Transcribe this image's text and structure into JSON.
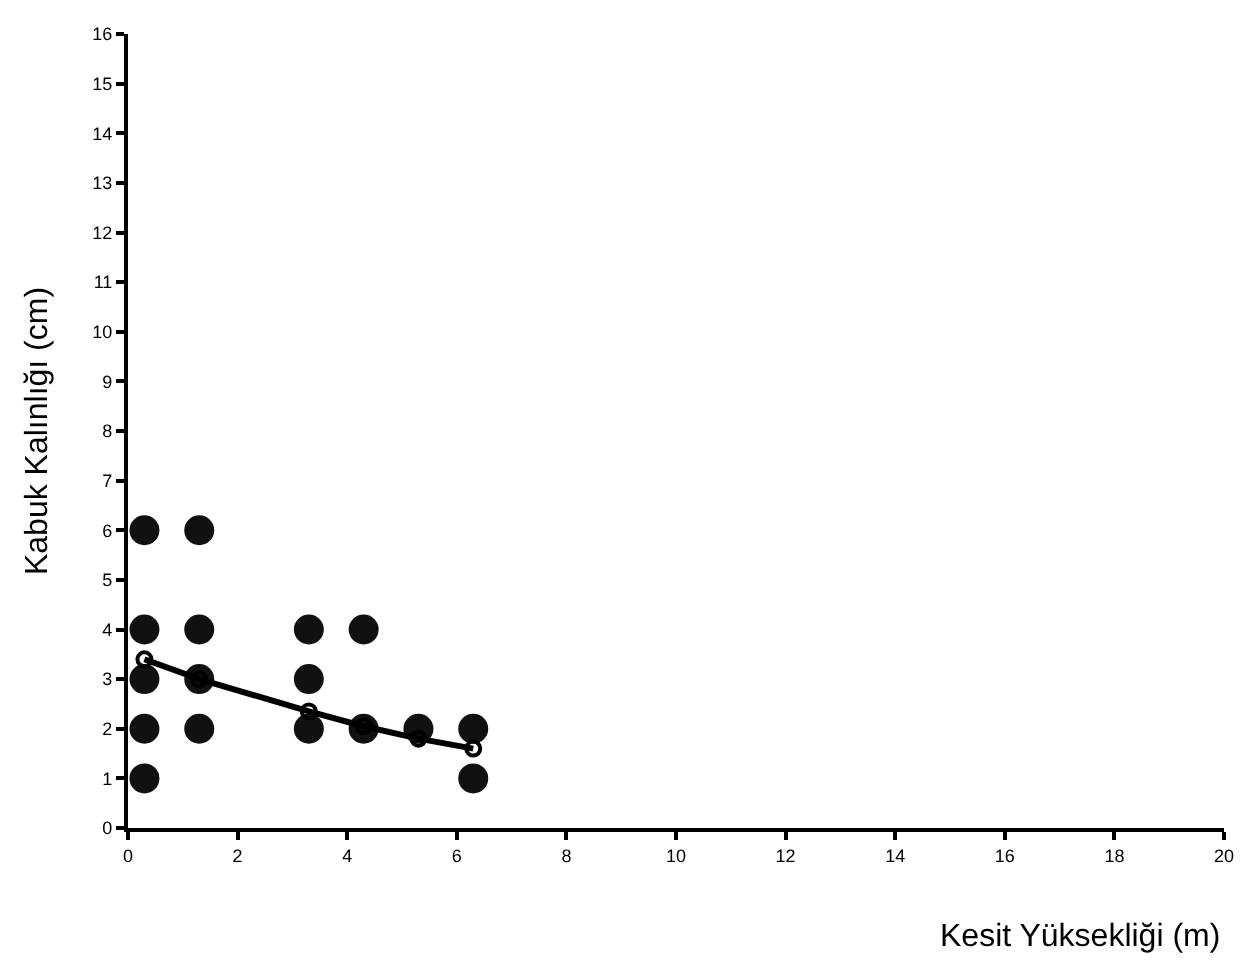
{
  "chart_data": {
    "type": "scatter",
    "xlabel": "Kesit Yüksekliği (m)",
    "ylabel": "Kabuk Kalınlığı (cm)",
    "xlim": [
      0,
      20
    ],
    "xticks": [
      0,
      2,
      4,
      6,
      8,
      10,
      12,
      14,
      16,
      18,
      20
    ],
    "ylim": [
      0,
      16
    ],
    "yticks": [
      0,
      1,
      2,
      3,
      4,
      5,
      6,
      7,
      8,
      9,
      10,
      11,
      12,
      13,
      14,
      15,
      16
    ],
    "series": [
      {
        "marker": "circle",
        "color": "#111111",
        "x": [
          0.3,
          0.3,
          0.3,
          0.3,
          0.3,
          1.3,
          1.3,
          1.3,
          1.3,
          3.3,
          3.3,
          3.3,
          4.3,
          4.3,
          5.3,
          6.3,
          6.3
        ],
        "values": [
          6,
          4,
          3,
          2,
          1,
          6,
          4,
          3,
          2,
          4,
          3,
          2,
          4,
          2,
          2,
          2,
          1
        ]
      },
      {
        "type": "line",
        "marker": "circle-open",
        "color": "#000000",
        "x": [
          0.3,
          1.3,
          3.3,
          4.3,
          5.3,
          6.3
        ],
        "values": [
          3.4,
          3.0,
          2.35,
          2.05,
          1.8,
          1.6
        ]
      }
    ]
  }
}
